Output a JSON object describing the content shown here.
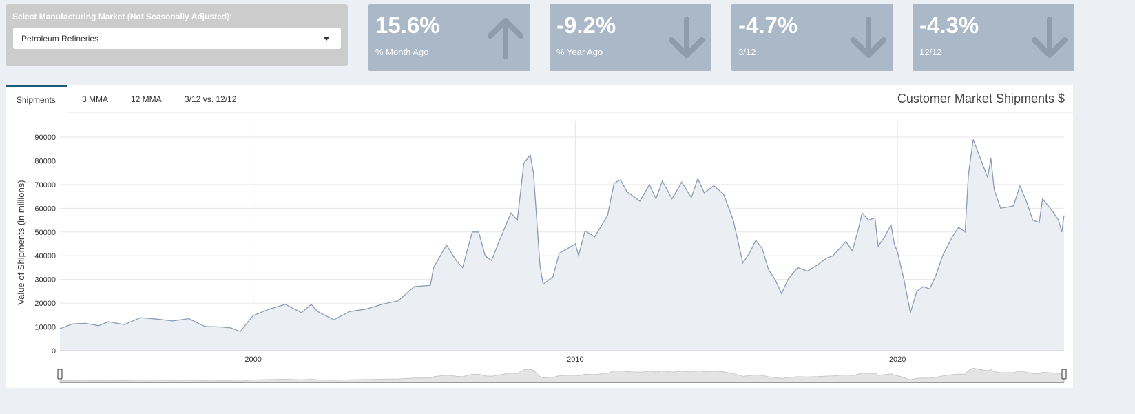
{
  "selector": {
    "label": "Select Manufacturing Market (Not Seasonally Adjusted):",
    "value": "Petroleum Refineries"
  },
  "value_boxes": [
    {
      "value": "15.6%",
      "label": "% Month Ago",
      "icon": "arrow-up-icon"
    },
    {
      "value": "-9.2%",
      "label": "% Year Ago",
      "icon": "arrow-down-icon"
    },
    {
      "value": "-4.7%",
      "label": "3/12",
      "icon": "arrow-down-icon"
    },
    {
      "value": "-4.3%",
      "label": "12/12",
      "icon": "arrow-down-icon"
    }
  ],
  "tabs": [
    "Shipments",
    "3 MMA",
    "12 MMA",
    "3/12 vs. 12/12"
  ],
  "active_tab": "Shipments",
  "card_title": "Customer Market Shipments $",
  "colors": {
    "line": "#8a9bb5",
    "fill": "#ebeef2",
    "value_box": "#abb8c7",
    "tab_accent": "#1e5a78"
  },
  "chart_data": {
    "type": "area",
    "ylabel": "Value of Shipments (in millions)",
    "xlabel": "",
    "ylim": [
      0,
      95000
    ],
    "xlim": [
      1994.0,
      2025.17
    ],
    "yticks": [
      0,
      10000,
      20000,
      30000,
      40000,
      50000,
      60000,
      70000,
      80000,
      90000
    ],
    "xticks": [
      2000,
      2010,
      2020
    ],
    "grid": true,
    "range_selector": true,
    "points": [
      [
        1994.0,
        9300
      ],
      [
        1994.4,
        11300
      ],
      [
        1994.8,
        11500
      ],
      [
        1995.2,
        10500
      ],
      [
        1995.5,
        12200
      ],
      [
        1996.0,
        11000
      ],
      [
        1996.5,
        13900
      ],
      [
        1997.0,
        13300
      ],
      [
        1997.5,
        12500
      ],
      [
        1998.0,
        13500
      ],
      [
        1998.5,
        10200
      ],
      [
        1999.0,
        10000
      ],
      [
        1999.3,
        9600
      ],
      [
        1999.6,
        8000
      ],
      [
        1999.8,
        11500
      ],
      [
        2000.0,
        14800
      ],
      [
        2000.5,
        17500
      ],
      [
        2001.0,
        19500
      ],
      [
        2001.5,
        16000
      ],
      [
        2001.8,
        19500
      ],
      [
        2002.0,
        16500
      ],
      [
        2002.5,
        13000
      ],
      [
        2003.0,
        16500
      ],
      [
        2003.5,
        17500
      ],
      [
        2004.0,
        19500
      ],
      [
        2004.5,
        21000
      ],
      [
        2005.0,
        27000
      ],
      [
        2005.5,
        27500
      ],
      [
        2005.6,
        35000
      ],
      [
        2006.0,
        44500
      ],
      [
        2006.3,
        38000
      ],
      [
        2006.5,
        35000
      ],
      [
        2006.8,
        50000
      ],
      [
        2007.0,
        50000
      ],
      [
        2007.2,
        40000
      ],
      [
        2007.4,
        38000
      ],
      [
        2007.6,
        45000
      ],
      [
        2008.0,
        58000
      ],
      [
        2008.2,
        55000
      ],
      [
        2008.4,
        79000
      ],
      [
        2008.6,
        82500
      ],
      [
        2008.7,
        75000
      ],
      [
        2008.9,
        36000
      ],
      [
        2009.0,
        28000
      ],
      [
        2009.3,
        31000
      ],
      [
        2009.5,
        41000
      ],
      [
        2010.0,
        45000
      ],
      [
        2010.1,
        40000
      ],
      [
        2010.3,
        50500
      ],
      [
        2010.6,
        48000
      ],
      [
        2011.0,
        57000
      ],
      [
        2011.2,
        70500
      ],
      [
        2011.4,
        72000
      ],
      [
        2011.6,
        67000
      ],
      [
        2012.0,
        63000
      ],
      [
        2012.3,
        70000
      ],
      [
        2012.5,
        64000
      ],
      [
        2012.7,
        71500
      ],
      [
        2013.0,
        64000
      ],
      [
        2013.3,
        71000
      ],
      [
        2013.6,
        64500
      ],
      [
        2013.8,
        72500
      ],
      [
        2014.0,
        66500
      ],
      [
        2014.3,
        69500
      ],
      [
        2014.6,
        66000
      ],
      [
        2014.9,
        55000
      ],
      [
        2015.2,
        37000
      ],
      [
        2015.4,
        41000
      ],
      [
        2015.6,
        46500
      ],
      [
        2015.8,
        43000
      ],
      [
        2016.0,
        34000
      ],
      [
        2016.2,
        30000
      ],
      [
        2016.4,
        24000
      ],
      [
        2016.6,
        30000
      ],
      [
        2016.9,
        35000
      ],
      [
        2017.2,
        33500
      ],
      [
        2017.5,
        36000
      ],
      [
        2017.8,
        39000
      ],
      [
        2018.0,
        40000
      ],
      [
        2018.4,
        46000
      ],
      [
        2018.6,
        42000
      ],
      [
        2018.8,
        52000
      ],
      [
        2018.9,
        58000
      ],
      [
        2019.1,
        55000
      ],
      [
        2019.3,
        56000
      ],
      [
        2019.4,
        44000
      ],
      [
        2019.6,
        48000
      ],
      [
        2019.8,
        53000
      ],
      [
        2019.9,
        45000
      ],
      [
        2020.0,
        41500
      ],
      [
        2020.2,
        30000
      ],
      [
        2020.4,
        16000
      ],
      [
        2020.6,
        25000
      ],
      [
        2020.8,
        27000
      ],
      [
        2021.0,
        26000
      ],
      [
        2021.2,
        32000
      ],
      [
        2021.4,
        40000
      ],
      [
        2021.7,
        48000
      ],
      [
        2021.9,
        52000
      ],
      [
        2022.1,
        50000
      ],
      [
        2022.2,
        74000
      ],
      [
        2022.35,
        89000
      ],
      [
        2022.6,
        80000
      ],
      [
        2022.8,
        73000
      ],
      [
        2022.9,
        81000
      ],
      [
        2023.0,
        68000
      ],
      [
        2023.2,
        60000
      ],
      [
        2023.4,
        60500
      ],
      [
        2023.6,
        61000
      ],
      [
        2023.8,
        69500
      ],
      [
        2024.0,
        63000
      ],
      [
        2024.2,
        55000
      ],
      [
        2024.4,
        54000
      ],
      [
        2024.5,
        64000
      ],
      [
        2024.8,
        59000
      ],
      [
        2025.0,
        55000
      ],
      [
        2025.1,
        50000
      ],
      [
        2025.17,
        57000
      ]
    ]
  }
}
